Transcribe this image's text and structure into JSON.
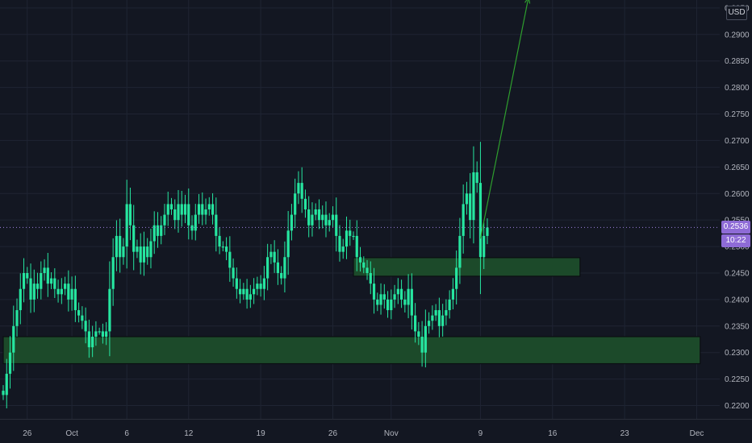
{
  "chart_data": {
    "type": "candlestick",
    "ylim": [
      0.2175,
      0.2965
    ],
    "y_ticks": [
      "0.2200",
      "0.2250",
      "0.2300",
      "0.2350",
      "0.2400",
      "0.2450",
      "0.2500",
      "0.2550",
      "0.2600",
      "0.2650",
      "0.2700",
      "0.2750",
      "0.2800",
      "0.2850",
      "0.2900",
      "0.2950"
    ],
    "x_ticks": [
      {
        "label": "26",
        "index": 7
      },
      {
        "label": "Oct",
        "index": 20
      },
      {
        "label": "6",
        "index": 36
      },
      {
        "label": "12",
        "index": 54
      },
      {
        "label": "19",
        "index": 75
      },
      {
        "label": "26",
        "index": 96
      },
      {
        "label": "Nov",
        "index": 113
      },
      {
        "label": "9",
        "index": 139
      },
      {
        "label": "16",
        "index": 160
      },
      {
        "label": "23",
        "index": 181
      },
      {
        "label": "Dec",
        "index": 202
      }
    ],
    "close": [
      0.222,
      0.226,
      0.23,
      0.235,
      0.238,
      0.242,
      0.245,
      0.244,
      0.24,
      0.243,
      0.242,
      0.245,
      0.246,
      0.243,
      0.244,
      0.242,
      0.241,
      0.242,
      0.243,
      0.24,
      0.242,
      0.238,
      0.237,
      0.236,
      0.234,
      0.231,
      0.233,
      0.234,
      0.234,
      0.233,
      0.234,
      0.242,
      0.248,
      0.252,
      0.248,
      0.25,
      0.258,
      0.254,
      0.249,
      0.25,
      0.247,
      0.25,
      0.248,
      0.251,
      0.254,
      0.252,
      0.254,
      0.256,
      0.258,
      0.257,
      0.255,
      0.258,
      0.256,
      0.258,
      0.254,
      0.253,
      0.256,
      0.258,
      0.256,
      0.257,
      0.258,
      0.256,
      0.252,
      0.25,
      0.25,
      0.249,
      0.246,
      0.244,
      0.242,
      0.241,
      0.242,
      0.24,
      0.241,
      0.242,
      0.243,
      0.242,
      0.244,
      0.248,
      0.249,
      0.247,
      0.245,
      0.244,
      0.248,
      0.253,
      0.256,
      0.26,
      0.262,
      0.259,
      0.257,
      0.254,
      0.256,
      0.257,
      0.255,
      0.256,
      0.254,
      0.255,
      0.256,
      0.252,
      0.249,
      0.25,
      0.253,
      0.252,
      0.252,
      0.248,
      0.247,
      0.246,
      0.245,
      0.243,
      0.24,
      0.239,
      0.241,
      0.24,
      0.238,
      0.24,
      0.241,
      0.242,
      0.24,
      0.239,
      0.242,
      0.237,
      0.234,
      0.233,
      0.23,
      0.235,
      0.236,
      0.237,
      0.238,
      0.235,
      0.237,
      0.238,
      0.24,
      0.242,
      0.246,
      0.252,
      0.258,
      0.26,
      0.255,
      0.264,
      0.262,
      0.248,
      0.252,
      0.2536
    ],
    "supply_demand_zones": [
      {
        "price_top": 0.2479,
        "price_bottom": 0.2444,
        "start_index": 102,
        "end_index": 168
      },
      {
        "price_top": 0.233,
        "price_bottom": 0.2279,
        "start_index": 0,
        "end_index": 203
      }
    ],
    "arrow": {
      "from": {
        "index": 139,
        "price": 0.2515
      },
      "to": {
        "index": 153,
        "price": 0.297
      }
    },
    "current_price": "0.2536",
    "countdown": "10:22",
    "currency": "USD",
    "colors": {
      "background": "#131722",
      "candle": "#26e6a0",
      "zone_fill": "#1c4a2a",
      "zone_border": "#0b0e12",
      "arrow": "#2e9e2e",
      "price_badge": "#8e6bd6",
      "price_line": "#9e80e0"
    }
  }
}
